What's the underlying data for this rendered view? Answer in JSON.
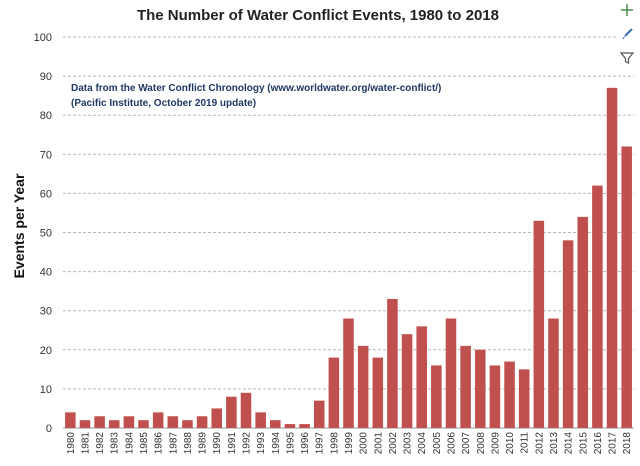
{
  "chart_data": {
    "type": "bar",
    "title": "The Number of Water Conflict Events, 1980 to 2018",
    "xlabel": "",
    "ylabel": "Events per Year",
    "ylim": [
      0,
      100
    ],
    "yticks": [
      "0",
      "10",
      "20",
      "30",
      "40",
      "50",
      "60",
      "70",
      "80",
      "90",
      "100"
    ],
    "grid": true,
    "bar_color": "#c0504d",
    "annotation_lines": [
      "Data from the Water Conflict Chronology (www.worldwater.org/water-conflict/)",
      "(Pacific Institute, October 2019 update)"
    ],
    "categories": [
      "1980",
      "1981",
      "1982",
      "1983",
      "1984",
      "1985",
      "1986",
      "1987",
      "1988",
      "1989",
      "1990",
      "1991",
      "1992",
      "1993",
      "1994",
      "1995",
      "1996",
      "1997",
      "1998",
      "1999",
      "2000",
      "2001",
      "2002",
      "2003",
      "2004",
      "2005",
      "2006",
      "2007",
      "2008",
      "2009",
      "2010",
      "2011",
      "2012",
      "2013",
      "2014",
      "2015",
      "2016",
      "2017",
      "2018"
    ],
    "values": [
      4,
      2,
      3,
      2,
      3,
      2,
      4,
      3,
      2,
      3,
      5,
      8,
      9,
      4,
      2,
      1,
      1,
      7,
      18,
      28,
      21,
      18,
      33,
      24,
      26,
      16,
      28,
      21,
      20,
      16,
      17,
      15,
      53,
      28,
      48,
      54,
      62,
      87,
      72
    ]
  },
  "toolbar": {
    "icons": [
      "add-element-icon",
      "brush-icon",
      "filter-icon"
    ]
  }
}
